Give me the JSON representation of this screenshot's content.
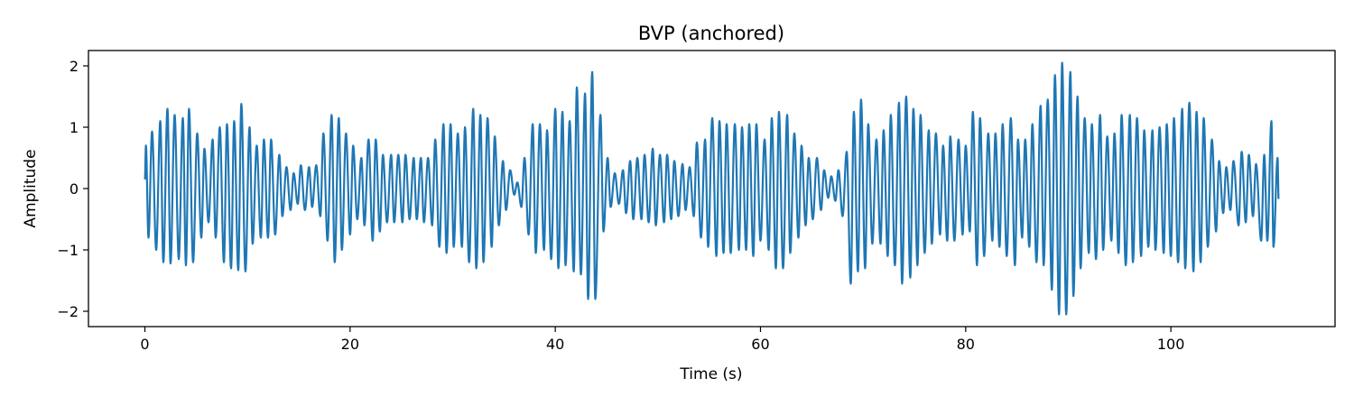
{
  "chart_data": {
    "type": "line",
    "title": "BVP (anchored)",
    "xlabel": "Time (s)",
    "ylabel": "Amplitude",
    "xlim": [
      -5.5,
      116
    ],
    "ylim": [
      -2.25,
      2.25
    ],
    "xticks": [
      0,
      20,
      40,
      60,
      80,
      100
    ],
    "yticks": [
      -2,
      -1,
      0,
      1,
      2
    ],
    "xtick_labels": [
      "0",
      "20",
      "40",
      "60",
      "80",
      "100"
    ],
    "ytick_labels": [
      "−2",
      "−1",
      "0",
      "1",
      "2"
    ],
    "grid": false,
    "series": [
      {
        "color": "#1f77b4",
        "x_start": 0,
        "x_end": 110.5,
        "y_start": 0.15,
        "y_end": -0.17,
        "peaks": [
          [
            0.1,
            0.7
          ],
          [
            0.7,
            0.93
          ],
          [
            1.5,
            1.1
          ],
          [
            2.2,
            1.3
          ],
          [
            2.9,
            1.2
          ],
          [
            3.7,
            1.15
          ],
          [
            4.3,
            1.3
          ],
          [
            5.1,
            0.9
          ],
          [
            5.8,
            0.65
          ],
          [
            6.6,
            0.8
          ],
          [
            7.3,
            1.0
          ],
          [
            8.0,
            1.05
          ],
          [
            8.7,
            1.1
          ],
          [
            9.4,
            1.38
          ],
          [
            10.2,
            1.0
          ],
          [
            10.9,
            0.7
          ],
          [
            11.6,
            0.8
          ],
          [
            12.3,
            0.8
          ],
          [
            13.1,
            0.55
          ],
          [
            13.8,
            0.35
          ],
          [
            14.5,
            0.25
          ],
          [
            15.2,
            0.38
          ],
          [
            16.0,
            0.35
          ],
          [
            16.7,
            0.38
          ],
          [
            17.4,
            0.9
          ],
          [
            18.2,
            1.2
          ],
          [
            18.9,
            1.15
          ],
          [
            19.6,
            0.9
          ],
          [
            20.3,
            0.7
          ],
          [
            21.1,
            0.5
          ],
          [
            21.8,
            0.8
          ],
          [
            22.5,
            0.8
          ],
          [
            23.2,
            0.55
          ],
          [
            24.0,
            0.55
          ],
          [
            24.7,
            0.55
          ],
          [
            25.4,
            0.55
          ],
          [
            26.2,
            0.5
          ],
          [
            26.9,
            0.5
          ],
          [
            27.6,
            0.5
          ],
          [
            28.3,
            0.8
          ],
          [
            29.1,
            1.05
          ],
          [
            29.8,
            1.05
          ],
          [
            30.5,
            0.9
          ],
          [
            31.2,
            1.0
          ],
          [
            32.0,
            1.3
          ],
          [
            32.7,
            1.2
          ],
          [
            33.4,
            1.15
          ],
          [
            34.1,
            0.85
          ],
          [
            34.9,
            0.45
          ],
          [
            35.6,
            0.3
          ],
          [
            36.3,
            0.1
          ],
          [
            37.0,
            0.5
          ],
          [
            37.8,
            1.05
          ],
          [
            38.5,
            1.05
          ],
          [
            39.2,
            0.95
          ],
          [
            40.0,
            1.3
          ],
          [
            40.7,
            1.25
          ],
          [
            41.4,
            1.1
          ],
          [
            42.1,
            1.65
          ],
          [
            42.9,
            1.55
          ],
          [
            43.6,
            1.9
          ],
          [
            44.4,
            1.2
          ],
          [
            45.1,
            0.5
          ],
          [
            45.8,
            0.25
          ],
          [
            46.6,
            0.3
          ],
          [
            47.3,
            0.45
          ],
          [
            48.0,
            0.5
          ],
          [
            48.7,
            0.55
          ],
          [
            49.5,
            0.65
          ],
          [
            50.2,
            0.55
          ],
          [
            50.9,
            0.55
          ],
          [
            51.6,
            0.45
          ],
          [
            52.4,
            0.4
          ],
          [
            53.1,
            0.35
          ],
          [
            53.8,
            0.75
          ],
          [
            54.6,
            0.8
          ],
          [
            55.3,
            1.15
          ],
          [
            56.0,
            1.1
          ],
          [
            56.7,
            1.05
          ],
          [
            57.5,
            1.05
          ],
          [
            58.2,
            1.0
          ],
          [
            58.9,
            1.05
          ],
          [
            59.6,
            1.05
          ],
          [
            60.4,
            0.8
          ],
          [
            61.1,
            1.15
          ],
          [
            61.8,
            1.25
          ],
          [
            62.6,
            1.2
          ],
          [
            63.3,
            0.9
          ],
          [
            64.0,
            0.7
          ],
          [
            64.7,
            0.5
          ],
          [
            65.5,
            0.5
          ],
          [
            66.2,
            0.3
          ],
          [
            66.9,
            0.2
          ],
          [
            67.6,
            0.3
          ],
          [
            68.4,
            0.6
          ],
          [
            69.1,
            1.25
          ],
          [
            69.8,
            1.45
          ],
          [
            70.5,
            1.05
          ],
          [
            71.3,
            0.8
          ],
          [
            72.0,
            0.95
          ],
          [
            72.7,
            1.2
          ],
          [
            73.5,
            1.4
          ],
          [
            74.2,
            1.5
          ],
          [
            74.9,
            1.3
          ],
          [
            75.6,
            1.2
          ],
          [
            76.4,
            0.95
          ],
          [
            77.1,
            0.9
          ],
          [
            77.8,
            0.7
          ],
          [
            78.5,
            0.85
          ],
          [
            79.3,
            0.8
          ],
          [
            80.0,
            0.7
          ],
          [
            80.7,
            1.25
          ],
          [
            81.4,
            1.15
          ],
          [
            82.2,
            0.9
          ],
          [
            82.9,
            0.9
          ],
          [
            83.6,
            1.05
          ],
          [
            84.4,
            1.15
          ],
          [
            85.1,
            0.8
          ],
          [
            85.8,
            0.8
          ],
          [
            86.5,
            1.05
          ],
          [
            87.3,
            1.35
          ],
          [
            88.0,
            1.45
          ],
          [
            88.7,
            1.85
          ],
          [
            89.4,
            2.05
          ],
          [
            90.2,
            1.9
          ],
          [
            90.9,
            1.5
          ],
          [
            91.6,
            1.15
          ],
          [
            92.3,
            1.05
          ],
          [
            93.1,
            1.2
          ],
          [
            93.8,
            0.85
          ],
          [
            94.5,
            0.9
          ],
          [
            95.2,
            1.2
          ],
          [
            96.0,
            1.2
          ],
          [
            96.7,
            1.15
          ],
          [
            97.4,
            0.95
          ],
          [
            98.2,
            0.95
          ],
          [
            98.9,
            1.0
          ],
          [
            99.6,
            1.05
          ],
          [
            100.3,
            1.15
          ],
          [
            101.1,
            1.3
          ],
          [
            101.8,
            1.4
          ],
          [
            102.5,
            1.25
          ],
          [
            103.2,
            1.15
          ],
          [
            104.0,
            0.8
          ],
          [
            104.7,
            0.45
          ],
          [
            105.4,
            0.35
          ],
          [
            106.1,
            0.45
          ],
          [
            106.9,
            0.6
          ],
          [
            107.6,
            0.55
          ],
          [
            108.3,
            0.4
          ],
          [
            109.1,
            0.55
          ],
          [
            109.8,
            1.1
          ],
          [
            110.4,
            0.5
          ]
        ],
        "troughs": [
          [
            0.35,
            -0.8
          ],
          [
            1.1,
            -1.0
          ],
          [
            1.8,
            -1.2
          ],
          [
            2.5,
            -1.22
          ],
          [
            3.3,
            -1.15
          ],
          [
            4.0,
            -1.25
          ],
          [
            4.7,
            -1.2
          ],
          [
            5.5,
            -0.8
          ],
          [
            6.2,
            -0.55
          ],
          [
            6.9,
            -0.8
          ],
          [
            7.7,
            -1.2
          ],
          [
            8.4,
            -1.3
          ],
          [
            9.1,
            -1.33
          ],
          [
            9.8,
            -1.35
          ],
          [
            10.5,
            -0.9
          ],
          [
            11.3,
            -0.8
          ],
          [
            12.0,
            -0.8
          ],
          [
            12.7,
            -0.75
          ],
          [
            13.4,
            -0.45
          ],
          [
            14.2,
            -0.35
          ],
          [
            14.9,
            -0.25
          ],
          [
            15.6,
            -0.35
          ],
          [
            16.3,
            -0.3
          ],
          [
            17.1,
            -0.45
          ],
          [
            17.8,
            -0.85
          ],
          [
            18.5,
            -1.2
          ],
          [
            19.2,
            -1.0
          ],
          [
            20.0,
            -0.75
          ],
          [
            20.7,
            -0.5
          ],
          [
            21.4,
            -0.6
          ],
          [
            22.2,
            -0.85
          ],
          [
            22.9,
            -0.7
          ],
          [
            23.6,
            -0.55
          ],
          [
            24.3,
            -0.55
          ],
          [
            25.1,
            -0.55
          ],
          [
            25.8,
            -0.5
          ],
          [
            26.5,
            -0.5
          ],
          [
            27.2,
            -0.55
          ],
          [
            28.0,
            -0.6
          ],
          [
            28.7,
            -0.95
          ],
          [
            29.4,
            -1.05
          ],
          [
            30.1,
            -0.95
          ],
          [
            30.9,
            -0.95
          ],
          [
            31.6,
            -1.2
          ],
          [
            32.3,
            -1.3
          ],
          [
            33.0,
            -1.2
          ],
          [
            33.8,
            -0.95
          ],
          [
            34.5,
            -0.6
          ],
          [
            35.2,
            -0.35
          ],
          [
            36.0,
            -0.1
          ],
          [
            36.7,
            -0.3
          ],
          [
            37.4,
            -0.75
          ],
          [
            38.1,
            -1.05
          ],
          [
            38.9,
            -1.0
          ],
          [
            39.6,
            -1.15
          ],
          [
            40.3,
            -1.3
          ],
          [
            41.0,
            -1.25
          ],
          [
            41.8,
            -1.35
          ],
          [
            42.5,
            -1.4
          ],
          [
            43.2,
            -1.8
          ],
          [
            43.9,
            -1.8
          ],
          [
            44.7,
            -0.7
          ],
          [
            45.4,
            -0.3
          ],
          [
            46.2,
            -0.25
          ],
          [
            46.9,
            -0.4
          ],
          [
            47.6,
            -0.5
          ],
          [
            48.4,
            -0.5
          ],
          [
            49.1,
            -0.55
          ],
          [
            49.8,
            -0.6
          ],
          [
            50.6,
            -0.55
          ],
          [
            51.3,
            -0.5
          ],
          [
            52.0,
            -0.45
          ],
          [
            52.7,
            -0.35
          ],
          [
            53.5,
            -0.45
          ],
          [
            54.2,
            -0.8
          ],
          [
            54.9,
            -0.95
          ],
          [
            55.7,
            -1.1
          ],
          [
            56.4,
            -1.05
          ],
          [
            57.1,
            -1.05
          ],
          [
            57.9,
            -1.0
          ],
          [
            58.6,
            -1.0
          ],
          [
            59.3,
            -1.1
          ],
          [
            60.0,
            -0.85
          ],
          [
            60.8,
            -1.0
          ],
          [
            61.5,
            -1.3
          ],
          [
            62.2,
            -1.3
          ],
          [
            62.9,
            -1.05
          ],
          [
            63.7,
            -0.8
          ],
          [
            64.4,
            -0.6
          ],
          [
            65.1,
            -0.5
          ],
          [
            65.9,
            -0.35
          ],
          [
            66.6,
            -0.15
          ],
          [
            67.3,
            -0.2
          ],
          [
            68.0,
            -0.45
          ],
          [
            68.8,
            -1.55
          ],
          [
            69.5,
            -1.35
          ],
          [
            70.2,
            -1.3
          ],
          [
            70.9,
            -0.9
          ],
          [
            71.7,
            -0.9
          ],
          [
            72.4,
            -1.1
          ],
          [
            73.1,
            -1.25
          ],
          [
            73.8,
            -1.55
          ],
          [
            74.6,
            -1.45
          ],
          [
            75.3,
            -1.25
          ],
          [
            76.0,
            -1.05
          ],
          [
            76.7,
            -0.9
          ],
          [
            77.5,
            -0.75
          ],
          [
            78.2,
            -0.85
          ],
          [
            78.9,
            -0.85
          ],
          [
            79.7,
            -0.75
          ],
          [
            80.4,
            -0.7
          ],
          [
            81.1,
            -1.25
          ],
          [
            81.8,
            -1.1
          ],
          [
            82.6,
            -0.85
          ],
          [
            83.3,
            -0.95
          ],
          [
            84.0,
            -1.1
          ],
          [
            84.8,
            -1.25
          ],
          [
            85.5,
            -0.8
          ],
          [
            86.2,
            -0.95
          ],
          [
            86.9,
            -1.2
          ],
          [
            87.6,
            -1.25
          ],
          [
            88.4,
            -1.65
          ],
          [
            89.1,
            -2.05
          ],
          [
            89.8,
            -2.05
          ],
          [
            90.5,
            -1.75
          ],
          [
            91.2,
            -1.3
          ],
          [
            92.0,
            -1.05
          ],
          [
            92.7,
            -1.15
          ],
          [
            93.4,
            -1.0
          ],
          [
            94.2,
            -0.85
          ],
          [
            94.9,
            -1.05
          ],
          [
            95.6,
            -1.25
          ],
          [
            96.3,
            -1.2
          ],
          [
            97.1,
            -1.1
          ],
          [
            97.8,
            -0.95
          ],
          [
            98.5,
            -1.0
          ],
          [
            99.3,
            -1.05
          ],
          [
            100.0,
            -1.1
          ],
          [
            100.7,
            -1.2
          ],
          [
            101.4,
            -1.3
          ],
          [
            102.2,
            -1.35
          ],
          [
            102.9,
            -1.2
          ],
          [
            103.6,
            -0.95
          ],
          [
            104.4,
            -0.7
          ],
          [
            105.1,
            -0.4
          ],
          [
            105.8,
            -0.35
          ],
          [
            106.6,
            -0.6
          ],
          [
            107.3,
            -0.55
          ],
          [
            108.0,
            -0.45
          ],
          [
            108.8,
            -0.85
          ],
          [
            109.4,
            -0.85
          ],
          [
            110.0,
            -0.95
          ]
        ]
      }
    ]
  }
}
